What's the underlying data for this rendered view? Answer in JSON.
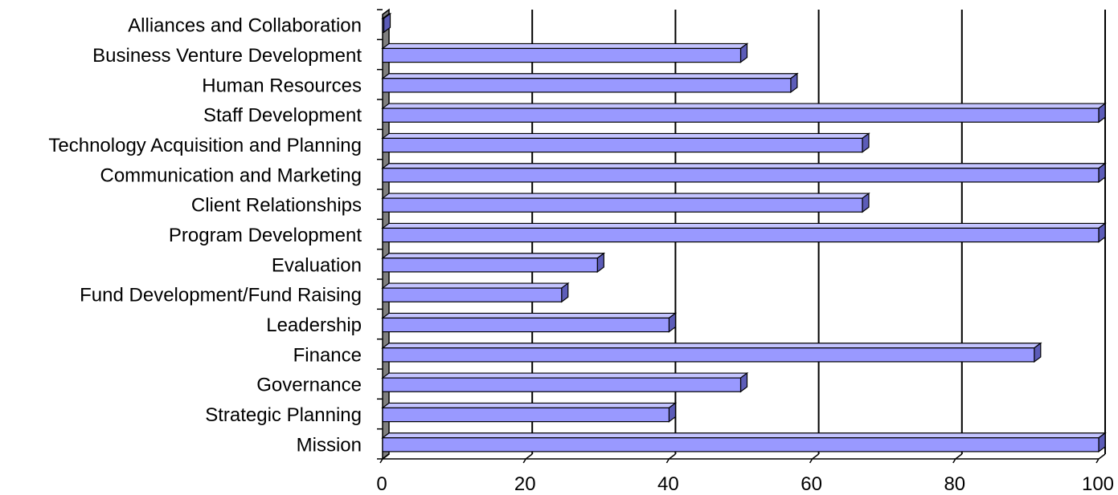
{
  "chart_data": {
    "type": "bar",
    "orientation": "horizontal",
    "style": "3d",
    "categories": [
      "Mission",
      "Strategic Planning",
      "Governance",
      "Finance ",
      "Leadership",
      "Fund Development/Fund Raising",
      "Evaluation",
      "Program Development",
      "Client Relationships",
      "Communication and Marketing",
      "Technology Acquisition and Planning",
      "Staff Development",
      "Human Resources",
      "Business Venture Development",
      "Alliances and Collaboration"
    ],
    "values": [
      100,
      40,
      50,
      91,
      40,
      25,
      30,
      100,
      67,
      100,
      67,
      100,
      57,
      50,
      0
    ],
    "xlim": [
      0,
      100
    ],
    "xticks": [
      0,
      20,
      40,
      60,
      80,
      100
    ],
    "grid": true,
    "legend": "none",
    "colors": {
      "bar_front": "#9999ff",
      "bar_top": "#c4c4ff",
      "bar_side": "#5c5cb8",
      "wall": "#7f7f7f",
      "gridline": "#000000"
    }
  }
}
